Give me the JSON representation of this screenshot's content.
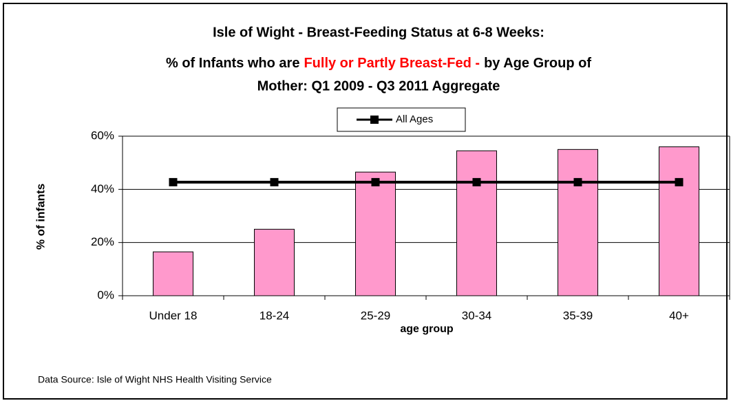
{
  "chart_data": {
    "type": "bar",
    "title": {
      "line1": "Isle of Wight - Breast-Feeding Status at 6-8 Weeks:",
      "line2_start": "% of Infants who are",
      "highlight": "Fully or Partly Breast-Fed -",
      "line2_end": "by Age Group of",
      "line3": "Mother: Q1 2009 - Q3 2011 Aggregate"
    },
    "highlight_color": "#ff0000",
    "x_label": "age group",
    "y_label": "% of infants",
    "source": "Data Source: Isle of Wight NHS Health Visiting Service",
    "categories": [
      "Under 18",
      "18-24",
      "25-29",
      "30-34",
      "35-39",
      "40+"
    ],
    "series": [
      {
        "type": "bar",
        "color": "#ff99cc",
        "values": [
          16.5,
          25,
          46.5,
          54.5,
          55,
          56
        ]
      },
      {
        "type": "line",
        "name": "All Ages",
        "color": "#000000",
        "values": [
          42.7,
          42.7,
          42.7,
          42.7,
          42.7,
          42.7
        ]
      }
    ],
    "ylim": [
      0,
      60
    ],
    "yticks": [
      {
        "value": 0,
        "label": "0%"
      },
      {
        "value": 20,
        "label": "20%"
      },
      {
        "value": 40,
        "label": "40%"
      },
      {
        "value": 60,
        "label": "60%"
      }
    ],
    "grid": true,
    "legend": "top"
  }
}
